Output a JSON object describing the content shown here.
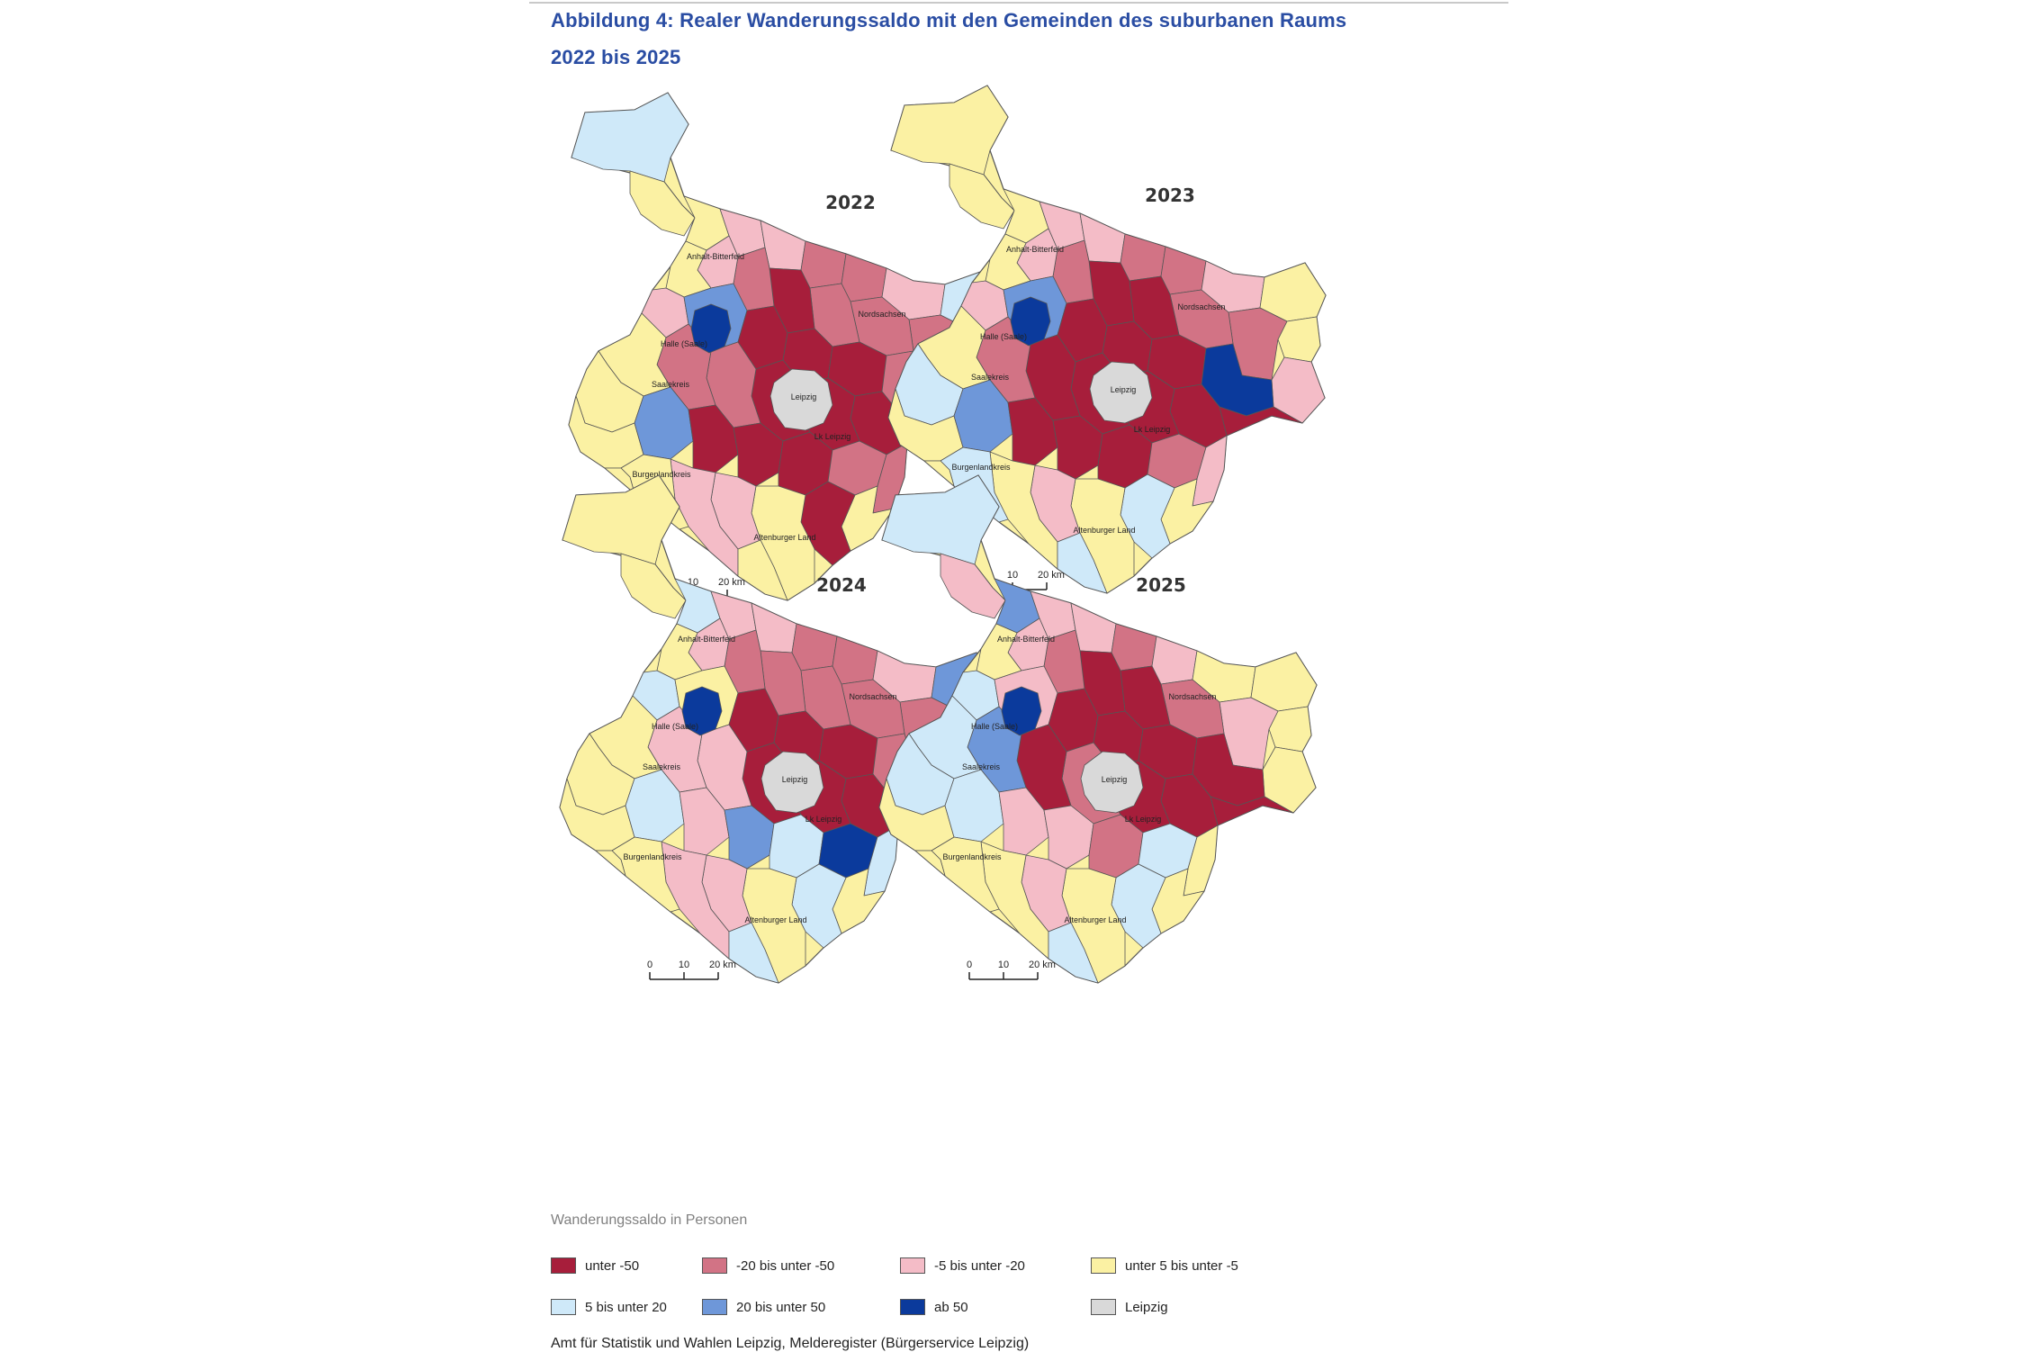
{
  "title_line1": "Abbildung 4: Realer Wanderungssaldo mit den Gemeinden des suburbanen Raums",
  "title_line2": "2022 bis 2025",
  "legend": {
    "heading": "Wanderungssaldo in Personen",
    "items": [
      {
        "key": "c1",
        "label": "unter -50",
        "color": "#a71e3b"
      },
      {
        "key": "c2",
        "label": "-20 bis unter -50",
        "color": "#d27385"
      },
      {
        "key": "c3",
        "label": "-5 bis unter -20",
        "color": "#f4bcc7"
      },
      {
        "key": "c4",
        "label": "unter 5 bis unter -5",
        "color": "#fbf1a3"
      },
      {
        "key": "c5",
        "label": "5 bis unter 20",
        "color": "#cfe9f9"
      },
      {
        "key": "c6",
        "label": "20 bis unter 50",
        "color": "#6e97d9"
      },
      {
        "key": "c7",
        "label": "ab 50",
        "color": "#0b3a9c"
      },
      {
        "key": "c8",
        "label": "Leipzig",
        "color": "#d9d9d9"
      }
    ]
  },
  "maps": [
    {
      "year": "2022",
      "labels": {
        "anhalt": "Anhalt-Bitterfeld",
        "nordsachsen": "Nordsachsen",
        "halle": "Halle (Saale)",
        "saalekreis": "Saalekreis",
        "leipzig": "Leipzig",
        "lkleipzig": "Lk Leipzig",
        "burgenland": "Burgenlandkreis",
        "altenburg": "Altenburger Land"
      }
    },
    {
      "year": "2023",
      "labels": {
        "anhalt": "Anhalt-Bitterfeld",
        "nordsachsen": "Nordsachsen",
        "halle": "Halle (Saale)",
        "saalekreis": "Saalekreis",
        "leipzig": "Leipzig",
        "lkleipzig": "Lk Leipzig",
        "burgenland": "Burgenlandkreis",
        "altenburg": "Altenburger Land"
      }
    },
    {
      "year": "2024",
      "labels": {
        "anhalt": "Anhalt-Bitterfeld",
        "nordsachsen": "Nordsachsen",
        "halle": "Halle (Saale)",
        "saalekreis": "Saalekreis",
        "leipzig": "Leipzig",
        "lkleipzig": "Lk Leipzig",
        "burgenland": "Burgenlandkreis",
        "altenburg": "Altenburger Land"
      }
    },
    {
      "year": "2025",
      "labels": {
        "anhalt": "Anhalt-Bitterfeld",
        "nordsachsen": "Nordsachsen",
        "halle": "Halle (Saale)",
        "saalekreis": "Saalekreis",
        "leipzig": "Leipzig",
        "lkleipzig": "Lk Leipzig",
        "burgenland": "Burgenlandkreis",
        "altenburg": "Altenburger Land"
      }
    }
  ],
  "scale_bar": {
    "t0": "0",
    "t1": "10",
    "t2": "20 km"
  },
  "source": "Amt für Statistik und Wahlen Leipzig, Melderegister (Bürgerservice Leipzig)"
}
